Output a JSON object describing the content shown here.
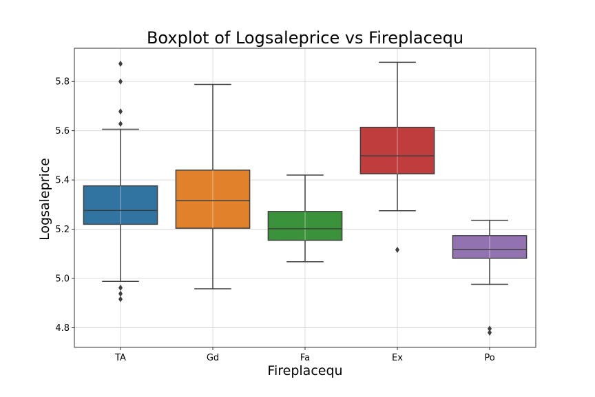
{
  "chart_data": {
    "type": "box",
    "title": "Boxplot of Logsaleprice vs Fireplacequ",
    "xlabel": "Fireplacequ",
    "ylabel": "Logsaleprice",
    "ylim": [
      4.72,
      5.935
    ],
    "yticks": [
      4.8,
      5.0,
      5.2,
      5.4,
      5.6,
      5.8
    ],
    "ytick_labels": [
      "4.8",
      "5.0",
      "5.2",
      "5.4",
      "5.6",
      "5.8"
    ],
    "grid": true,
    "categories": [
      "TA",
      "Gd",
      "Fa",
      "Ex",
      "Po"
    ],
    "boxes": [
      {
        "category": "TA",
        "color": "#3274a1",
        "whisker_low": 4.988,
        "q1": 5.22,
        "median": 5.276,
        "q3": 5.376,
        "whisker_high": 5.606,
        "outliers": [
          5.872,
          5.8,
          5.678,
          5.628,
          4.962,
          4.938,
          4.916
        ]
      },
      {
        "category": "Gd",
        "color": "#e1812c",
        "whisker_low": 4.958,
        "q1": 5.204,
        "median": 5.316,
        "q3": 5.44,
        "whisker_high": 5.788,
        "outliers": []
      },
      {
        "category": "Fa",
        "color": "#3a923a",
        "whisker_low": 5.068,
        "q1": 5.155,
        "median": 5.202,
        "q3": 5.272,
        "whisker_high": 5.42,
        "outliers": []
      },
      {
        "category": "Ex",
        "color": "#c03d3e",
        "whisker_low": 5.275,
        "q1": 5.425,
        "median": 5.498,
        "q3": 5.614,
        "whisker_high": 5.878,
        "outliers": [
          5.116
        ]
      },
      {
        "category": "Po",
        "color": "#9372b2",
        "whisker_low": 4.976,
        "q1": 5.082,
        "median": 5.118,
        "q3": 5.174,
        "whisker_high": 5.236,
        "outliers": [
          4.796,
          4.78
        ]
      }
    ]
  }
}
